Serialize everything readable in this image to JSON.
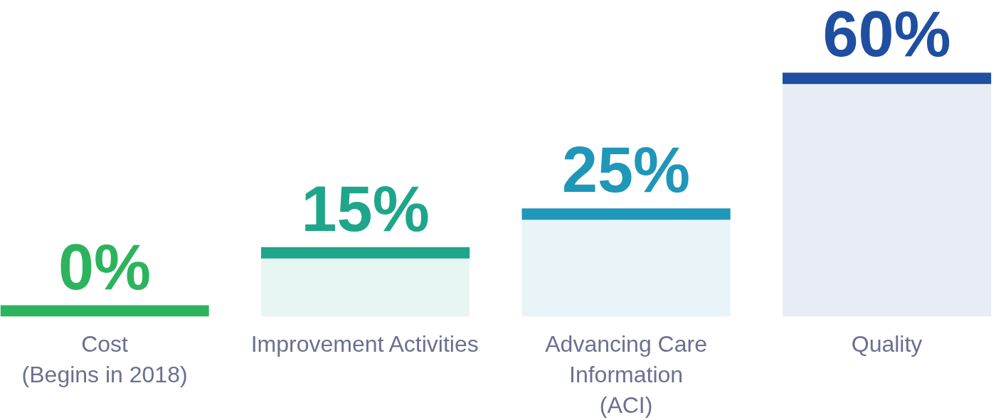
{
  "chart_data": {
    "type": "bar",
    "categories": [
      "Cost\n(Begins in 2018)",
      "Improvement Activities",
      "Advancing Care\nInformation\n(ACI)",
      "Quality"
    ],
    "values": [
      0,
      15,
      25,
      60
    ],
    "colors": [
      "#2db35d",
      "#1fa68a",
      "#1f97b8",
      "#1f4fa0"
    ],
    "value_labels": [
      "0%",
      "15%",
      "25%",
      "60%"
    ],
    "grid": false
  }
}
